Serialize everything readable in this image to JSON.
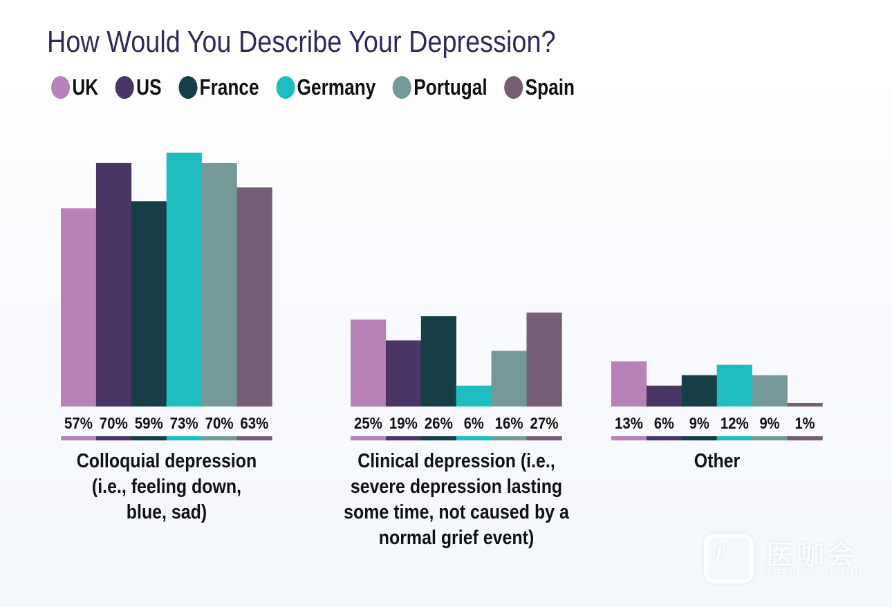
{
  "chart_data": {
    "type": "bar",
    "title": "How Would You Describe Your Depression?",
    "xlabel": "",
    "ylabel": "",
    "ylim": [
      0,
      100
    ],
    "grid": false,
    "legend_position": "top-left",
    "value_format": "percent",
    "categories": [
      "Colloquial depression (i.e., feeling down, blue, sad)",
      "Clinical depression (i.e., severe depression lasting some time, not caused by a normal grief event)",
      "Other"
    ],
    "category_lines": [
      [
        "Colloquial depression",
        "(i.e., feeling down,",
        "blue, sad)"
      ],
      [
        "Clinical depression (i.e.,",
        "severe depression lasting",
        "some time, not caused by a",
        "normal grief event)"
      ],
      [
        "Other"
      ]
    ],
    "series": [
      {
        "name": "UK",
        "color": "#b881b9",
        "values": [
          57,
          25,
          13
        ]
      },
      {
        "name": "US",
        "color": "#4a3567",
        "values": [
          70,
          19,
          6
        ]
      },
      {
        "name": "France",
        "color": "#153e47",
        "values": [
          59,
          26,
          9
        ]
      },
      {
        "name": "Germany",
        "color": "#20bdc0",
        "values": [
          73,
          6,
          12
        ]
      },
      {
        "name": "Portugal",
        "color": "#739a98",
        "values": [
          70,
          16,
          9
        ]
      },
      {
        "name": "Spain",
        "color": "#765e77",
        "values": [
          63,
          27,
          1
        ]
      }
    ]
  },
  "watermark": {
    "chinese_text": "医咖会",
    "english_text": "MEDIECO GROUP",
    "logo_glyph": "ℓ"
  }
}
